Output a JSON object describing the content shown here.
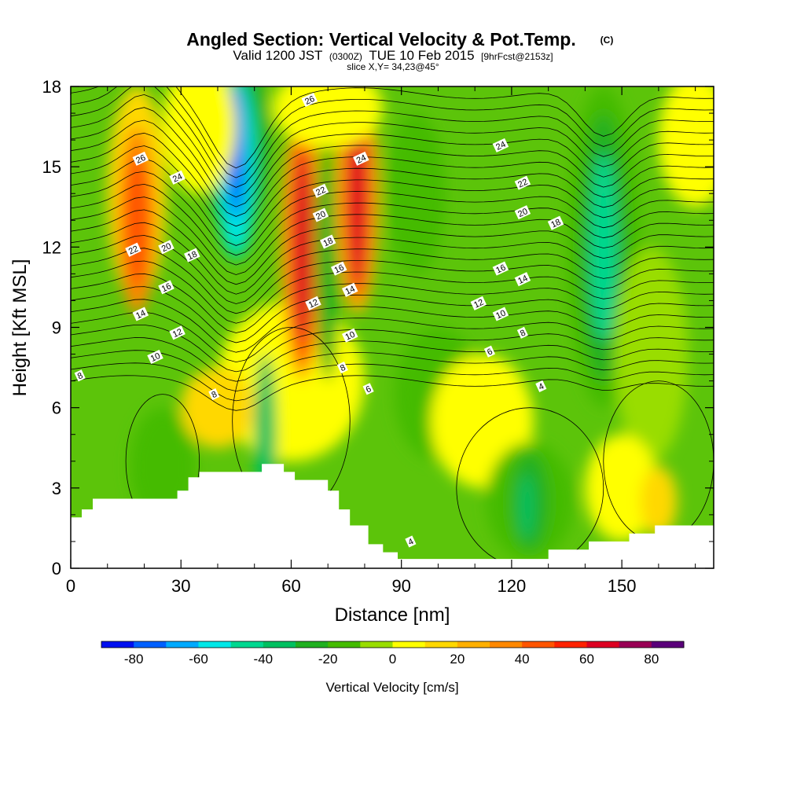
{
  "title": {
    "main": "Angled Section: Vertical Velocity & Pot.Temp.",
    "unit": "(C)",
    "valid_prefix": "Valid 1200 JST",
    "valid_z": "(0300Z)",
    "valid_date": "TUE 10 Feb 2015",
    "fcst": "[9hrFcst@2153z]",
    "slice": "slice X,Y= 34,23@45°"
  },
  "chart_data": {
    "type": "heatmap",
    "xlabel": "Distance [nm]",
    "ylabel": "Height [Kft MSL]",
    "xlim": [
      0,
      175
    ],
    "ylim": [
      0,
      18
    ],
    "x_ticks": [
      0,
      30,
      60,
      90,
      120,
      150
    ],
    "y_ticks": [
      0,
      3,
      6,
      9,
      12,
      15,
      18
    ],
    "colorbar": {
      "label": "Vertical Velocity [cm/s]",
      "bounds": [
        -90,
        90
      ],
      "tick_values": [
        -80,
        -60,
        -40,
        -20,
        0,
        20,
        40,
        60,
        80
      ],
      "tick_labels": [
        "-80",
        "-60",
        "-40",
        "-20",
        "0",
        "20",
        "40",
        "60",
        "80"
      ],
      "colors": [
        "#0010f0",
        "#0060ff",
        "#00aaff",
        "#00e8e8",
        "#00d890",
        "#00c060",
        "#20b020",
        "#44bb00",
        "#99dd00",
        "#ffff00",
        "#ffd800",
        "#ffb000",
        "#ff8800",
        "#ff5500",
        "#ff2200",
        "#dd0022",
        "#990055",
        "#5a007a"
      ]
    },
    "vertical_velocity_features": [
      {
        "sign": "positive",
        "x": 18,
        "z": 13,
        "peak": 45
      },
      {
        "sign": "negative",
        "x": 45,
        "z": 15,
        "peak": -75
      },
      {
        "sign": "positive",
        "x": 63,
        "z": 12,
        "peak": 60
      },
      {
        "sign": "negative",
        "x": 70,
        "z": 12,
        "peak": -30
      },
      {
        "sign": "positive",
        "x": 78,
        "z": 14,
        "peak": 60
      },
      {
        "sign": "negative",
        "x": 145,
        "z": 12,
        "peak": -45
      }
    ],
    "terrain_top_kft": [
      [
        0,
        1.9
      ],
      [
        3,
        1.9
      ],
      [
        3,
        2.2
      ],
      [
        6,
        2.2
      ],
      [
        6,
        2.6
      ],
      [
        29,
        2.6
      ],
      [
        29,
        2.9
      ],
      [
        32,
        2.9
      ],
      [
        32,
        3.4
      ],
      [
        35,
        3.4
      ],
      [
        35,
        3.6
      ],
      [
        52,
        3.6
      ],
      [
        52,
        3.9
      ],
      [
        58,
        3.9
      ],
      [
        58,
        3.6
      ],
      [
        61,
        3.6
      ],
      [
        61,
        3.3
      ],
      [
        70,
        3.3
      ],
      [
        70,
        2.9
      ],
      [
        73,
        2.9
      ],
      [
        73,
        2.2
      ],
      [
        76,
        2.2
      ],
      [
        76,
        1.6
      ],
      [
        81,
        1.6
      ],
      [
        81,
        0.9
      ],
      [
        85,
        0.9
      ],
      [
        85,
        0.6
      ],
      [
        89,
        0.6
      ],
      [
        89,
        0.35
      ],
      [
        130,
        0.35
      ],
      [
        130,
        0.7
      ],
      [
        141,
        0.7
      ],
      [
        141,
        1.0
      ],
      [
        152,
        1.0
      ],
      [
        152,
        1.3
      ],
      [
        159,
        1.3
      ],
      [
        159,
        1.6
      ],
      [
        175,
        1.6
      ]
    ],
    "theta_contours": {
      "interval_c": 2,
      "labels": [
        {
          "x": 2.5,
          "z": 7.2,
          "v": "8"
        },
        {
          "x": 19,
          "z": 15.3,
          "v": "26"
        },
        {
          "x": 29,
          "z": 14.6,
          "v": "24"
        },
        {
          "x": 17,
          "z": 11.9,
          "v": "22"
        },
        {
          "x": 26,
          "z": 12.0,
          "v": "20"
        },
        {
          "x": 33,
          "z": 11.7,
          "v": "18"
        },
        {
          "x": 26,
          "z": 10.5,
          "v": "16"
        },
        {
          "x": 19,
          "z": 9.5,
          "v": "14"
        },
        {
          "x": 29,
          "z": 8.8,
          "v": "12"
        },
        {
          "x": 23,
          "z": 7.9,
          "v": "10"
        },
        {
          "x": 39,
          "z": 6.5,
          "v": "8"
        },
        {
          "x": 65,
          "z": 17.5,
          "v": "26"
        },
        {
          "x": 79,
          "z": 15.3,
          "v": "24"
        },
        {
          "x": 68,
          "z": 14.1,
          "v": "22"
        },
        {
          "x": 68,
          "z": 13.2,
          "v": "20"
        },
        {
          "x": 70,
          "z": 12.2,
          "v": "18"
        },
        {
          "x": 73,
          "z": 11.2,
          "v": "16"
        },
        {
          "x": 66,
          "z": 9.9,
          "v": "12"
        },
        {
          "x": 76,
          "z": 10.4,
          "v": "14"
        },
        {
          "x": 76,
          "z": 8.7,
          "v": "10"
        },
        {
          "x": 74,
          "z": 7.5,
          "v": "8"
        },
        {
          "x": 81,
          "z": 6.7,
          "v": "6"
        },
        {
          "x": 117,
          "z": 15.8,
          "v": "24"
        },
        {
          "x": 123,
          "z": 14.4,
          "v": "22"
        },
        {
          "x": 123,
          "z": 13.3,
          "v": "20"
        },
        {
          "x": 132,
          "z": 12.9,
          "v": "18"
        },
        {
          "x": 117,
          "z": 11.2,
          "v": "16"
        },
        {
          "x": 123,
          "z": 10.8,
          "v": "14"
        },
        {
          "x": 111,
          "z": 9.9,
          "v": "12"
        },
        {
          "x": 117,
          "z": 9.5,
          "v": "10"
        },
        {
          "x": 123,
          "z": 8.8,
          "v": "8"
        },
        {
          "x": 114,
          "z": 8.1,
          "v": "6"
        },
        {
          "x": 128,
          "z": 6.8,
          "v": "4"
        },
        {
          "x": 92.5,
          "z": 1.0,
          "v": "4"
        }
      ]
    }
  }
}
